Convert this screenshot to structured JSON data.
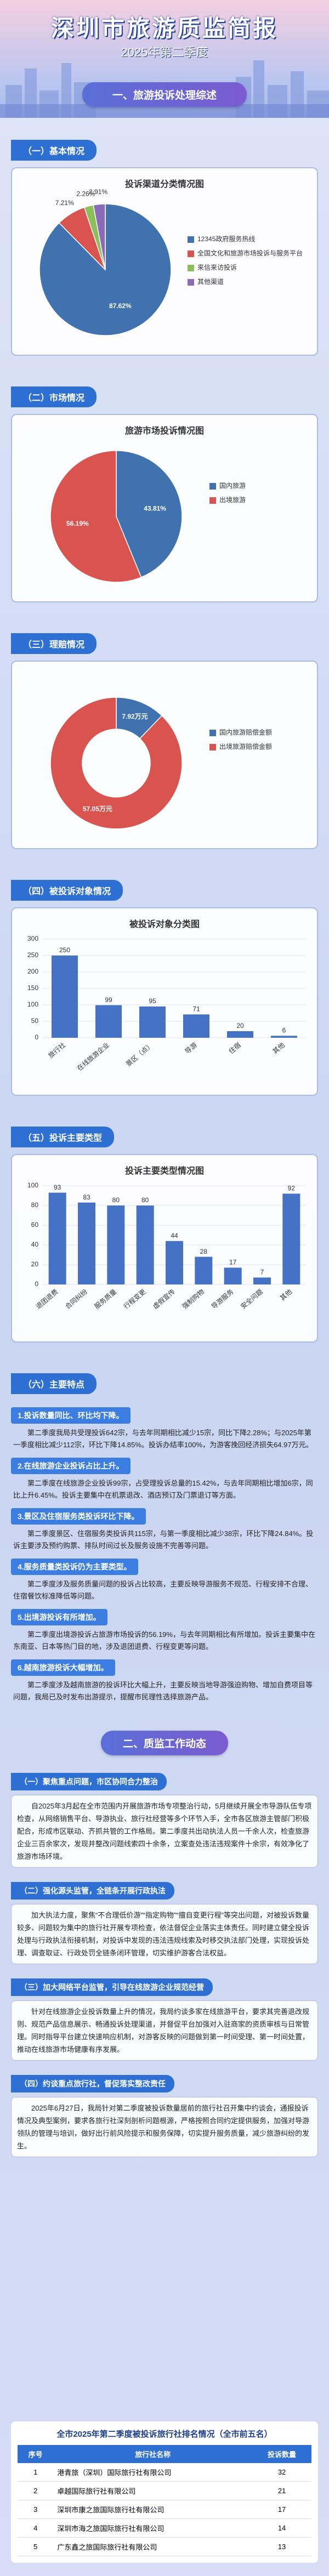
{
  "header": {
    "title": "深圳市旅游质监简报",
    "issue": "2025年第二季度"
  },
  "part1": {
    "title": "一、旅游投诉处理综述",
    "sections": [
      "（一）基本情况",
      "（二）市场情况",
      "（三）理赔情况",
      "（四）被投诉对象情况",
      "（五）投诉主要类型",
      "（六）主要特点"
    ]
  },
  "chart_data": [
    {
      "type": "pie",
      "title": "投诉渠道分类情况图",
      "categories": [
        "12345政府服务热线",
        "全国文化和旅游市场投诉与服务平台",
        "来信来访投诉",
        "其他渠道"
      ],
      "values": [
        87.62,
        7.21,
        2.26,
        2.91
      ],
      "value_labels": [
        "87.62%",
        "7.21%",
        "2.26%",
        "2.91%"
      ],
      "colors": [
        "#3f72af",
        "#d9534f",
        "#8cbf5a",
        "#8a6bb8"
      ]
    },
    {
      "type": "pie",
      "title": "旅游市场投诉情况图",
      "categories": [
        "国内旅游",
        "出境旅游"
      ],
      "values": [
        43.81,
        56.19
      ],
      "value_labels": [
        "43.81%",
        "56.19%"
      ],
      "colors": [
        "#3f72af",
        "#d9534f"
      ]
    },
    {
      "type": "donut",
      "title": "",
      "categories": [
        "国内旅游赔偿金额",
        "出境旅游赔偿金额"
      ],
      "values": [
        7.92,
        57.05
      ],
      "value_labels": [
        "7.92万元",
        "57.05万元"
      ],
      "colors": [
        "#3f72af",
        "#d9534f"
      ]
    },
    {
      "type": "bar",
      "title": "被投诉对象分类图",
      "categories": [
        "旅行社",
        "在线旅游企业",
        "景区（点）",
        "导游",
        "住宿",
        "其他"
      ],
      "values": [
        250,
        99,
        95,
        71,
        20,
        6
      ],
      "color": "#4472c4",
      "ylim": [
        0,
        300
      ],
      "yticks": [
        0,
        50,
        100,
        150,
        200,
        250,
        300
      ],
      "grid": true
    },
    {
      "type": "bar",
      "title": "投诉主要类型情况图",
      "categories": [
        "退团退费",
        "合同纠纷",
        "服务质量",
        "行程变更",
        "虚假宣传",
        "强制购物",
        "导游服务",
        "安全问题",
        "其他"
      ],
      "values": [
        93,
        83,
        80,
        80,
        44,
        28,
        17,
        7,
        92
      ],
      "color": "#4472c4",
      "ylim": [
        0,
        100
      ],
      "yticks": [
        0,
        20,
        40,
        60,
        80,
        100
      ],
      "grid": true
    }
  ],
  "features": [
    {
      "heading": "1.投诉数量同比、环比均下降。",
      "text": "第二季度我局共受理投诉642宗，与去年同期相比减少15宗，同比下降2.28%；与2025年第一季度相比减少112宗，环比下降14.85%。投诉办结率100%，为游客挽回经济损失64.97万元。"
    },
    {
      "heading": "2.在线旅游企业投诉占比上升。",
      "text": "第二季度在线旅游企业投诉99宗，占受理投诉总量的15.42%，与去年同期相比增加6宗，同比上升6.45%。投诉主要集中在机票退改、酒店预订及门票退订等方面。"
    },
    {
      "heading": "3.景区及住宿服务类投诉环比下降。",
      "text": "第二季度景区、住宿服务类投诉共115宗，与第一季度相比减少38宗，环比下降24.84%。投诉主要涉及预约购票、排队时间过长及服务设施不完善等问题。"
    },
    {
      "heading": "4.服务质量类投诉仍为主要类型。",
      "text": "第二季度涉及服务质量问题的投诉占比较高，主要反映导游服务不规范、行程安排不合理、住宿餐饮标准降低等问题。"
    },
    {
      "heading": "5.出境游投诉有所增加。",
      "text": "第二季度出境游投诉占旅游市场投诉的56.19%，与去年同期相比有所增加。投诉主要集中在东南亚、日本等热门目的地，涉及退团退费、行程变更等问题。"
    },
    {
      "heading": "6.越南旅游投诉大幅增加。",
      "text": "第二季度涉及越南旅游的投诉环比大幅上升，主要反映当地导游强迫购物、增加自费项目等问题，我局已及时发布出游提示，提醒市民理性选择旅游产品。"
    }
  ],
  "part2": {
    "title": "二、质监工作动态",
    "items": [
      {
        "heading": "（一）聚焦重点问题，市区协同合力整治",
        "text": "自2025年3月起在全市范围内开展旅游市场专项整治行动，5月继续开展全市导游队伍专项检查，从网络销售平台、导游执业、旅行社经营等多个环节入手，全市各区旅游主管部门积极配合，形成市区联动、齐抓共管的工作格局。第二季度共出动执法人员一千余人次，检查旅游企业三百余家次，发现并整改问题线索四十余条，立案查处违法违规案件十余宗，有效净化了旅游市场环境。"
      },
      {
        "heading": "（二）强化源头监管，全链条开展行政执法",
        "text": "加大执法力度，聚焦“不合理低价游”“指定购物”“擅自变更行程”等突出问题，对被投诉数量较多、问题较为集中的旅行社开展专项检查，依法督促企业落实主体责任。同时建立健全投诉处理与行政执法衔接机制，对投诉中发现的违法违规线索及时移交执法部门处理，实现投诉处理、调查取证、行政处罚全链条闭环管理，切实维护游客合法权益。"
      },
      {
        "heading": "（三）加大网络平台监管，引导在线旅游企业规范经营",
        "text": "针对在线旅游企业投诉数量上升的情况，我局约谈多家在线旅游平台，要求其完善退改规则、规范产品信息展示、畅通投诉处理渠道，并督促平台加强对入驻商家的资质审核与日常管理。同时指导平台建立快速响应机制，对游客反映的问题做到第一时间受理、第一时间处置，推动在线旅游市场健康有序发展。"
      },
      {
        "heading": "（四）约谈重点旅行社，督促落实整改责任",
        "text": "2025年6月27日，我局针对第二季度被投诉数量居前的旅行社召开集中约谈会，通报投诉情况及典型案例，要求各旅行社深刻剖析问题根源，严格按照合同约定提供服务，加强对导游领队的管理与培训，做好出行前风险提示和服务保障，切实提升服务质量，减少旅游纠纷的发生。"
      }
    ]
  },
  "table": {
    "title": "全市2025年第二季度被投诉旅行社排名情况（全市前五名）",
    "columns": [
      "序号",
      "旅行社名称",
      "投诉数量"
    ],
    "rows": [
      [
        1,
        "港青旅（深圳）国际旅行社有限公司",
        32
      ],
      [
        2,
        "卓越国际旅行社有限公司",
        21
      ],
      [
        3,
        "深圳市康之旅国际旅行社有限公司",
        17
      ],
      [
        4,
        "深圳市海之旅国际旅行社有限公司",
        14
      ],
      [
        5,
        "广东鑫之旅国际旅行社有限公司",
        13
      ]
    ]
  }
}
